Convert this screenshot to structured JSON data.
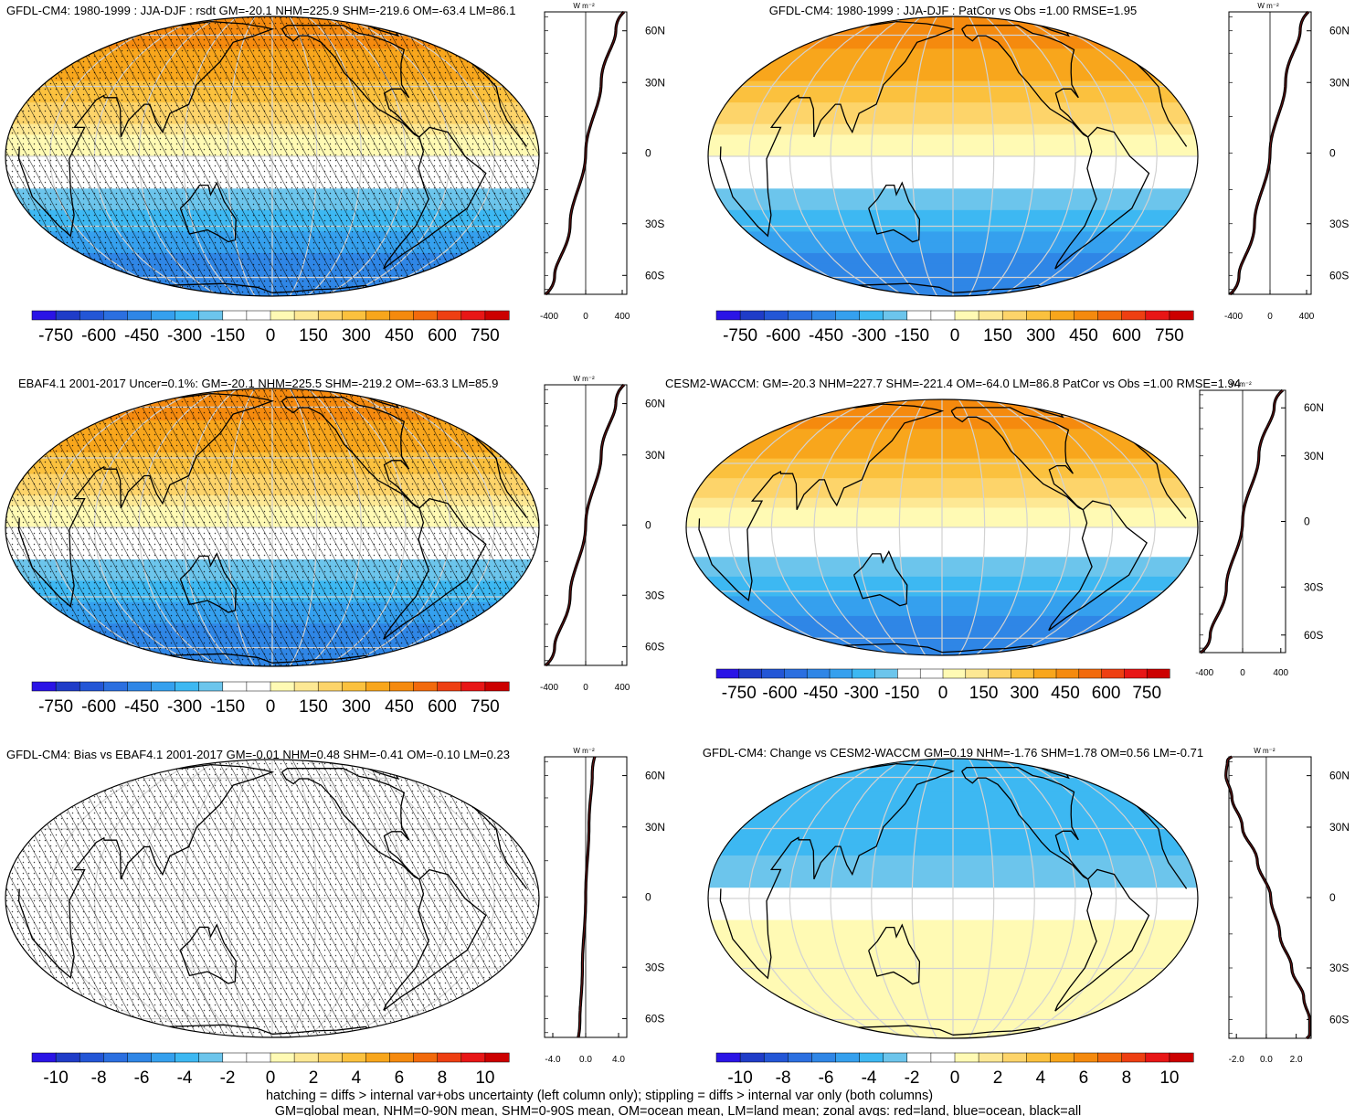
{
  "colors": {
    "bands": [
      "#2a14e6",
      "#1f3cc8",
      "#2356d6",
      "#2b6fe0",
      "#2f86e6",
      "#35a0ee",
      "#3db8f2",
      "#6cc5ec",
      "#ffffff",
      "#ffffff",
      "#fffab4",
      "#fde894",
      "#fdd46a",
      "#fbc13e",
      "#f8a61c",
      "#f58a0e",
      "#f26a0c",
      "#ee3f12",
      "#e81616",
      "#cc0000"
    ],
    "graticule": "#d2d2d2",
    "coast": "#000000"
  },
  "footnote": {
    "line1": "hatching = diffs > internal var+obs uncertainty (left column only); stippling = diffs > internal var only (both columns)",
    "line2": "GM=global mean, NHM=0-90N mean, SHM=0-90S mean, OM=ocean mean, LM=land mean; zonal avgs: red=land, blue=ocean, black=all"
  },
  "chart_data": [
    {
      "type": "heatmap",
      "title": "GFDL-CM4: 1980-1999 : JJA-DJF : rsdt GM=-20.1 NHM=225.9 SHM=-219.6 OM=-63.4 LM=86.1",
      "map": {
        "field": [
          -420,
          400
        ],
        "hatch": true,
        "stipple": true
      },
      "colorbar": {
        "tick_labels": [
          "-750",
          "-600",
          "-450",
          "-300",
          "-150",
          "0",
          "150",
          "300",
          "450",
          "600",
          "750"
        ]
      },
      "zonal": {
        "units_label": "W m⁻²",
        "ylabels": [
          "60N",
          "30N",
          "0",
          "30S",
          "60S"
        ],
        "xlabels": [
          "-400",
          "0",
          "400"
        ],
        "xlim": [
          -450,
          450
        ],
        "lat": [
          -90,
          -60,
          -30,
          0,
          30,
          60,
          90
        ],
        "values": [
          -440,
          -340,
          -170,
          0,
          170,
          330,
          420
        ]
      }
    },
    {
      "type": "heatmap",
      "title": "GFDL-CM4: 1980-1999 : JJA-DJF : PatCor vs Obs =1.00 RMSE=1.95",
      "map": {
        "field": [
          -420,
          400
        ],
        "hatch": false,
        "stipple": false
      },
      "colorbar": {
        "tick_labels": [
          "-750",
          "-600",
          "-450",
          "-300",
          "-150",
          "0",
          "150",
          "300",
          "450",
          "600",
          "750"
        ]
      },
      "zonal": {
        "units_label": "W m⁻²",
        "ylabels": [
          "60N",
          "30N",
          "0",
          "30S",
          "60S"
        ],
        "xlabels": [
          "-400",
          "0",
          "400"
        ],
        "xlim": [
          -450,
          450
        ],
        "lat": [
          -90,
          -60,
          -30,
          0,
          30,
          60,
          90
        ],
        "values": [
          -440,
          -340,
          -170,
          0,
          170,
          330,
          420
        ]
      }
    },
    {
      "type": "heatmap",
      "title": "EBAF4.1 2001-2017 Uncer=0.1%: GM=-20.1 NHM=225.5 SHM=-219.2 OM=-63.3 LM=85.9",
      "map": {
        "field": [
          -420,
          400
        ],
        "hatch": true,
        "stipple": true
      },
      "colorbar": {
        "tick_labels": [
          "-750",
          "-600",
          "-450",
          "-300",
          "-150",
          "0",
          "150",
          "300",
          "450",
          "600",
          "750"
        ]
      },
      "zonal": {
        "units_label": "W m⁻²",
        "ylabels": [
          "60N",
          "30N",
          "0",
          "30S",
          "60S"
        ],
        "xlabels": [
          "-400",
          "0",
          "400"
        ],
        "xlim": [
          -450,
          450
        ],
        "lat": [
          -90,
          -60,
          -30,
          0,
          30,
          60,
          90
        ],
        "values": [
          -440,
          -340,
          -170,
          0,
          170,
          330,
          420
        ]
      }
    },
    {
      "type": "heatmap",
      "title": "CESM2-WACCM: GM=-20.3 NHM=227.7 SHM=-221.4 OM=-64.0 LM=86.8 PatCor vs Obs =1.00 RMSE=1.94",
      "map": {
        "field": [
          -420,
          400
        ],
        "hatch": false,
        "stipple": false
      },
      "colorbar": {
        "tick_labels": [
          "-750",
          "-600",
          "-450",
          "-300",
          "-150",
          "0",
          "150",
          "300",
          "450",
          "600",
          "750"
        ]
      },
      "zonal": {
        "units_label": "W m⁻²",
        "ylabels": [
          "60N",
          "30N",
          "0",
          "30S",
          "60S"
        ],
        "xlabels": [
          "-400",
          "0",
          "400"
        ],
        "xlim": [
          -450,
          450
        ],
        "lat": [
          -90,
          -60,
          -30,
          0,
          30,
          60,
          90
        ],
        "values": [
          -440,
          -340,
          -170,
          0,
          170,
          330,
          420
        ]
      }
    },
    {
      "type": "heatmap",
      "title": "GFDL-CM4: Bias vs EBAF4.1 2001-2017 GM=-0.01 NHM=0.48 SHM=-0.41 OM=-0.10 LM=0.23",
      "map": {
        "field": [
          -0.4,
          0.5
        ],
        "hatch": true,
        "stipple": true
      },
      "colorbar": {
        "tick_labels": [
          "-10",
          "-8",
          "-6",
          "-4",
          "-2",
          "0",
          "2",
          "4",
          "6",
          "8",
          "10"
        ]
      },
      "zonal": {
        "units_label": "W m⁻²",
        "ylabels": [
          "60N",
          "30N",
          "0",
          "30S",
          "60S"
        ],
        "xlabels": [
          "-4.0",
          "0.0",
          "4.0"
        ],
        "xlim": [
          -5,
          5
        ],
        "lat": [
          -90,
          -60,
          -30,
          0,
          30,
          60,
          90
        ],
        "values": [
          -0.9,
          -0.7,
          -0.4,
          0.0,
          0.4,
          0.8,
          1.1
        ]
      }
    },
    {
      "type": "heatmap",
      "title": "GFDL-CM4: Change vs CESM2-WACCM GM=0.19 NHM=-1.76 SHM=1.78 OM=0.56 LM=-0.71",
      "map": {
        "field": [
          1.6,
          -1.6
        ],
        "hatch": false,
        "stipple": false
      },
      "colorbar": {
        "tick_labels": [
          "-10",
          "-8",
          "-6",
          "-4",
          "-2",
          "0",
          "2",
          "4",
          "6",
          "8",
          "10"
        ]
      },
      "zonal": {
        "units_label": "W m⁻²",
        "ylabels": [
          "60N",
          "30N",
          "0",
          "30S",
          "60S"
        ],
        "xlabels": [
          "-2.0",
          "0.0",
          "2.0"
        ],
        "xlim": [
          -2.5,
          3.0
        ],
        "lat": [
          -90,
          -75,
          -60,
          -45,
          -30,
          -15,
          0,
          15,
          30,
          45,
          60,
          75,
          90
        ],
        "values": [
          2.7,
          2.9,
          2.9,
          2.5,
          1.7,
          0.9,
          0.3,
          -0.6,
          -1.6,
          -2.3,
          -2.7,
          -2.6,
          -2.3
        ]
      }
    }
  ]
}
